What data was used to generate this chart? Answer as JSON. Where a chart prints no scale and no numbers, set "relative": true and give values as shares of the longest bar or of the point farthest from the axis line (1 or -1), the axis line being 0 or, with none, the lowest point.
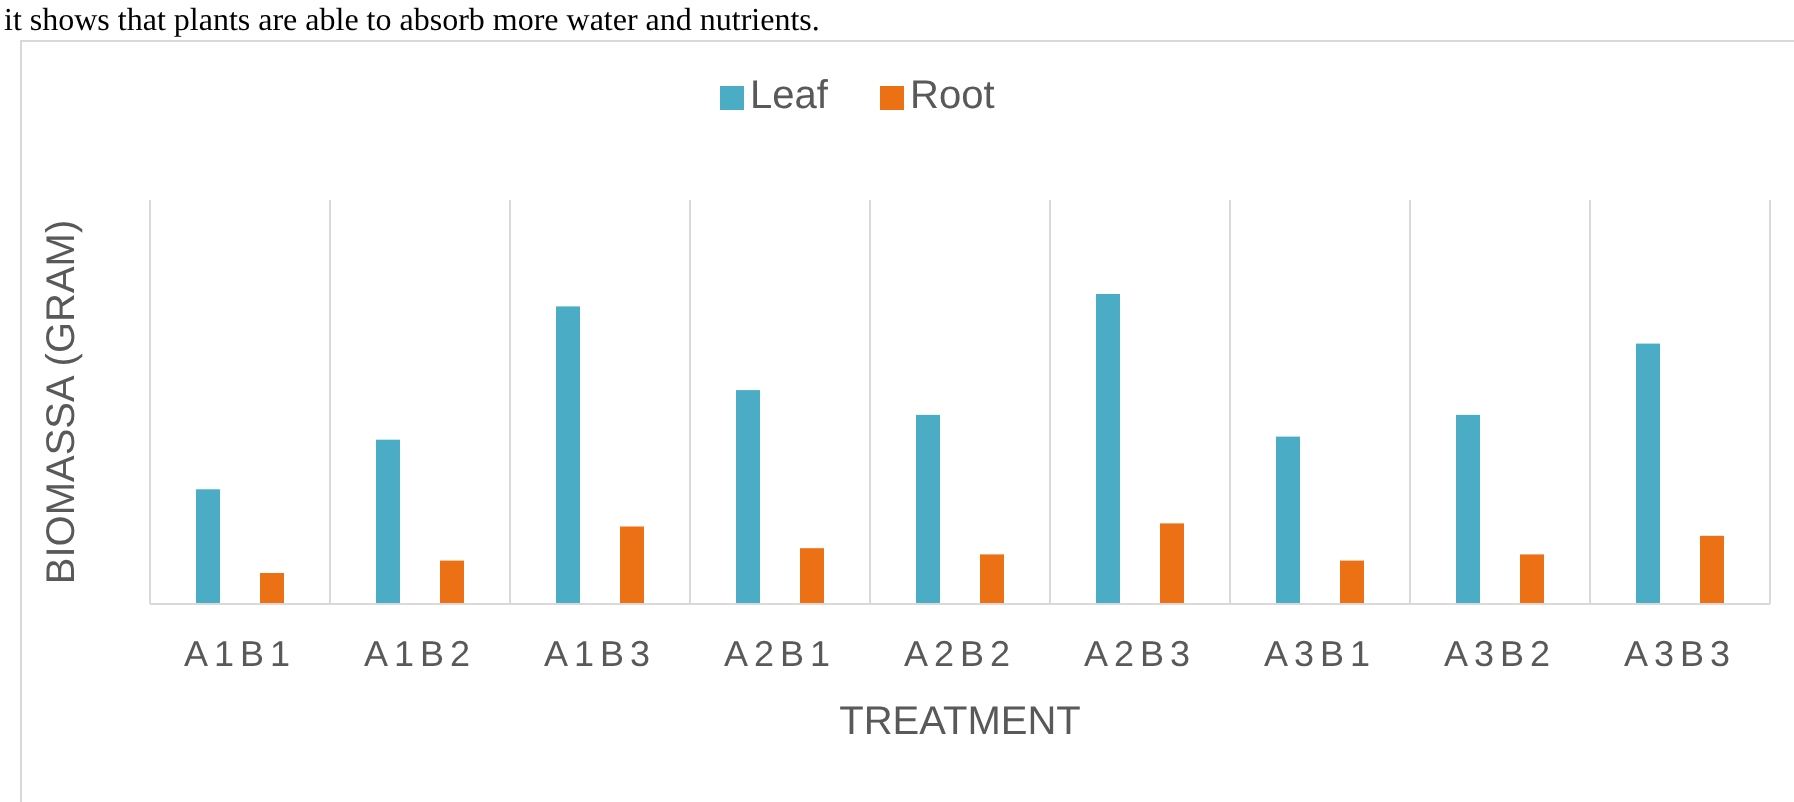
{
  "chart_data": {
    "type": "bar",
    "relative": true,
    "xlabel": "TREATMENT",
    "ylabel": "BIOMASSA (GRAM)",
    "annotations": [
      "it shows that plants are able to absorb more water and nutrients."
    ],
    "categories": [
      "A1B1",
      "A1B2",
      "A1B3",
      "A2B1",
      "A2B2",
      "A2B3",
      "A3B1",
      "A3B2",
      "A3B3"
    ],
    "grid": "x",
    "legend": "top",
    "series": [
      {
        "name": "Leaf",
        "color": "#4bacc6",
        "values": [
          0.37,
          0.53,
          0.96,
          0.69,
          0.61,
          1,
          0.54,
          0.61,
          0.84
        ]
      },
      {
        "name": "Root",
        "color": "#ec7014",
        "values": [
          0.1,
          0.14,
          0.25,
          0.18,
          0.16,
          0.26,
          0.14,
          0.16,
          0.22
        ]
      }
    ]
  }
}
